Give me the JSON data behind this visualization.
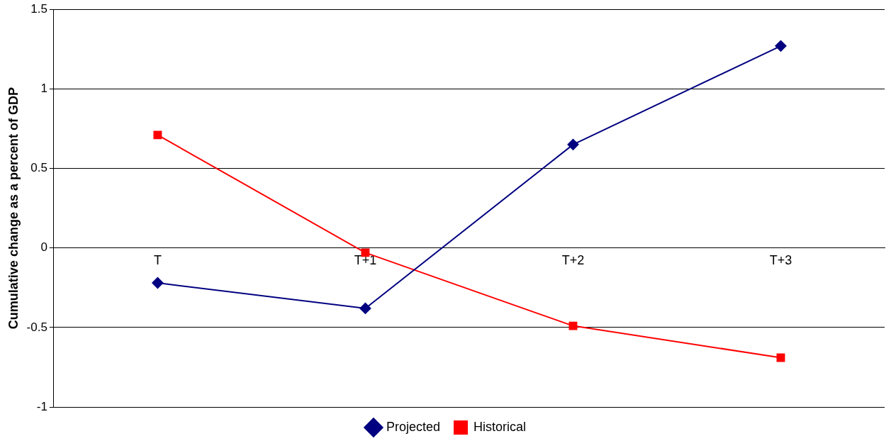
{
  "chart_data": {
    "type": "line",
    "ylabel": "Cumulative change as a percent of GDP",
    "categories": [
      "T",
      "T+1",
      "T+2",
      "T+3"
    ],
    "series": [
      {
        "name": "Projected",
        "color": "#000080",
        "marker": "diamond",
        "values": [
          -0.22,
          -0.38,
          0.65,
          1.27
        ]
      },
      {
        "name": "Historical",
        "color": "#ff0000",
        "marker": "square",
        "values": [
          0.71,
          -0.03,
          -0.49,
          -0.69
        ]
      }
    ],
    "ylim": [
      -1,
      1.5
    ],
    "yticks": [
      -1,
      -0.5,
      0,
      0.5,
      1,
      1.5
    ],
    "grid": "y",
    "legend": "bottom",
    "line_style": "solid"
  }
}
